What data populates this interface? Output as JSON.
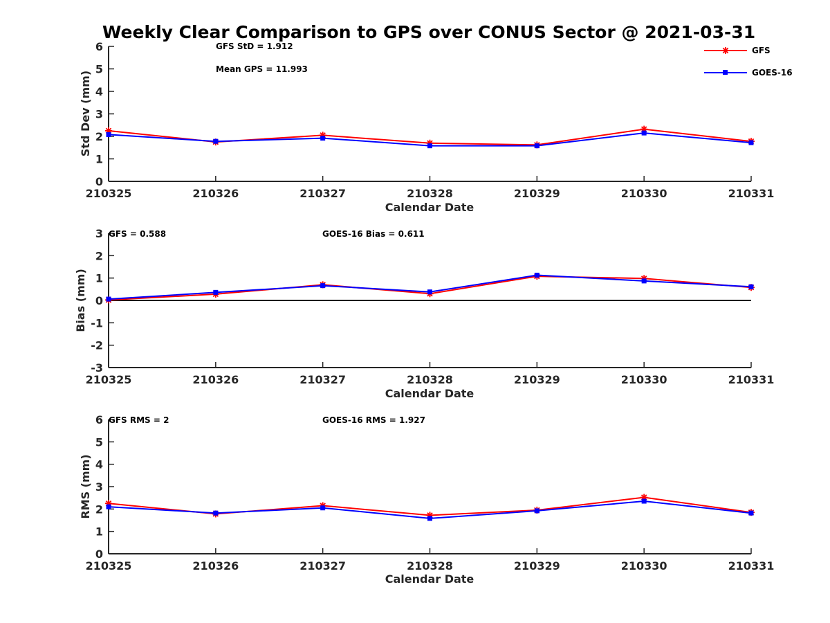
{
  "chart_data": {
    "type": "line",
    "title": "Weekly Clear Comparison to GPS over CONUS Sector @ 2021-03-31",
    "colors": {
      "GFS": "#ff0000",
      "GOES-16": "#0000ff",
      "zero_line": "#000000",
      "axis": "#262626"
    },
    "legend": {
      "placement": "top-right",
      "entries": [
        "GFS",
        "GOES-16"
      ],
      "markers": {
        "GFS": "asterisk",
        "GOES-16": "square"
      }
    },
    "categories": [
      "210325",
      "210326",
      "210327",
      "210328",
      "210329",
      "210330",
      "210331"
    ],
    "panels": [
      {
        "id": "std",
        "xlabel": "Calendar Date",
        "ylabel": "Std Dev (mm)",
        "ylim": [
          0,
          6
        ],
        "yticks": [
          "0",
          "1",
          "2",
          "3",
          "4",
          "5",
          "6"
        ],
        "annotations": [
          "GFS StD = 1.912",
          "Mean GPS = 11.993"
        ],
        "zero_line": false,
        "series": [
          {
            "name": "GFS",
            "values": [
              2.25,
              1.75,
              2.05,
              1.7,
              1.62,
              2.32,
              1.78
            ]
          },
          {
            "name": "GOES-16",
            "values": [
              2.08,
              1.78,
              1.92,
              1.58,
              1.58,
              2.15,
              1.72
            ]
          }
        ]
      },
      {
        "id": "bias",
        "xlabel": "Calendar Date",
        "ylabel": "Bias (mm)",
        "ylim": [
          -3,
          3
        ],
        "yticks": [
          "-3",
          "-2",
          "-1",
          "0",
          "1",
          "2",
          "3"
        ],
        "annotations": [
          "GFS = 0.588",
          "GOES-16 Bias  = 0.611"
        ],
        "zero_line": true,
        "series": [
          {
            "name": "GFS",
            "values": [
              0.02,
              0.28,
              0.7,
              0.3,
              1.08,
              0.98,
              0.58
            ]
          },
          {
            "name": "GOES-16",
            "values": [
              0.06,
              0.36,
              0.66,
              0.38,
              1.13,
              0.87,
              0.61
            ]
          }
        ]
      },
      {
        "id": "rms",
        "xlabel": "Calendar Date",
        "ylabel": "RMS (mm)",
        "ylim": [
          0,
          6
        ],
        "yticks": [
          "0",
          "1",
          "2",
          "3",
          "4",
          "5",
          "6"
        ],
        "annotations": [
          "GFS RMS = 2",
          "GOES-16 RMS = 1.927"
        ],
        "zero_line": false,
        "series": [
          {
            "name": "GFS",
            "values": [
              2.25,
              1.78,
              2.15,
              1.72,
              1.95,
              2.52,
              1.85
            ]
          },
          {
            "name": "GOES-16",
            "values": [
              2.1,
              1.82,
              2.05,
              1.58,
              1.92,
              2.35,
              1.82
            ]
          }
        ]
      }
    ]
  }
}
